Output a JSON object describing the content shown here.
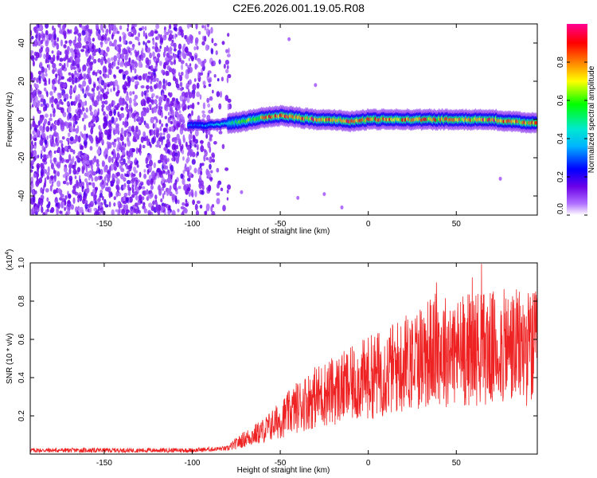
{
  "title": "C2E6.2026.001.19.05.R08",
  "colors": {
    "snr_line": "#ee2222",
    "frame": "#000000"
  },
  "chart_data": [
    {
      "type": "heatmap",
      "xlabel": "Height of straight line (km)",
      "ylabel": "Frequency (Hz)",
      "xlim": [
        -192,
        96
      ],
      "ylim": [
        -50,
        50
      ],
      "xticks": [
        -150,
        -100,
        -50,
        0,
        50
      ],
      "yticks": [
        -40,
        -20,
        0,
        20,
        40
      ],
      "grid": false,
      "noise_region_x": [
        -192,
        -78
      ],
      "signal_track": [
        {
          "x": -100,
          "y": -3
        },
        {
          "x": -90,
          "y": -3
        },
        {
          "x": -80,
          "y": -2
        },
        {
          "x": -70,
          "y": -1
        },
        {
          "x": -60,
          "y": 1
        },
        {
          "x": -50,
          "y": 2
        },
        {
          "x": -40,
          "y": 1
        },
        {
          "x": -30,
          "y": 0
        },
        {
          "x": -20,
          "y": 0
        },
        {
          "x": -10,
          "y": -1
        },
        {
          "x": 0,
          "y": 0
        },
        {
          "x": 10,
          "y": 0
        },
        {
          "x": 20,
          "y": 0
        },
        {
          "x": 30,
          "y": 0
        },
        {
          "x": 40,
          "y": 0
        },
        {
          "x": 50,
          "y": 0
        },
        {
          "x": 60,
          "y": 0
        },
        {
          "x": 70,
          "y": 0
        },
        {
          "x": 80,
          "y": -1
        },
        {
          "x": 96,
          "y": -2
        }
      ],
      "colorbar": {
        "label": "Normalized spectral amplitude",
        "ticks": [
          "0.0",
          "0.2",
          "0.4",
          "0.6",
          "0.8"
        ],
        "range": [
          0,
          1
        ],
        "colormap": [
          "#ffffff",
          "#7a00e0",
          "#0000ff",
          "#00e5ff",
          "#00ff00",
          "#ffff00",
          "#ff8000",
          "#ff0000",
          "#ff00a0"
        ]
      }
    },
    {
      "type": "line",
      "xlabel": "Height of straight line (km)",
      "ylabel": "SNR (10 * v/v)",
      "y_multiplier": "(x10",
      "y_multiplier_exp": "4",
      "y_multiplier_close": ")",
      "xlim": [
        -192,
        96
      ],
      "ylim": [
        0,
        1.0
      ],
      "xticks": [
        -150,
        -100,
        -50,
        0,
        50
      ],
      "yticks": [
        "0.2",
        "0.4",
        "0.6",
        "0.8",
        "1.0"
      ],
      "grid": false,
      "series": [
        {
          "envelope": [
            {
              "x": -192,
              "y": 0.02
            },
            {
              "x": -100,
              "y": 0.02
            },
            {
              "x": -80,
              "y": 0.03
            },
            {
              "x": -70,
              "y": 0.08
            },
            {
              "x": -60,
              "y": 0.12
            },
            {
              "x": -50,
              "y": 0.18
            },
            {
              "x": -40,
              "y": 0.25
            },
            {
              "x": -30,
              "y": 0.3
            },
            {
              "x": -20,
              "y": 0.33
            },
            {
              "x": -10,
              "y": 0.36
            },
            {
              "x": 0,
              "y": 0.4
            },
            {
              "x": 10,
              "y": 0.43
            },
            {
              "x": 20,
              "y": 0.47
            },
            {
              "x": 30,
              "y": 0.52
            },
            {
              "x": 40,
              "y": 0.55
            },
            {
              "x": 50,
              "y": 0.53
            },
            {
              "x": 60,
              "y": 0.56
            },
            {
              "x": 70,
              "y": 0.55
            },
            {
              "x": 80,
              "y": 0.56
            },
            {
              "x": 96,
              "y": 0.55
            }
          ]
        }
      ]
    }
  ]
}
